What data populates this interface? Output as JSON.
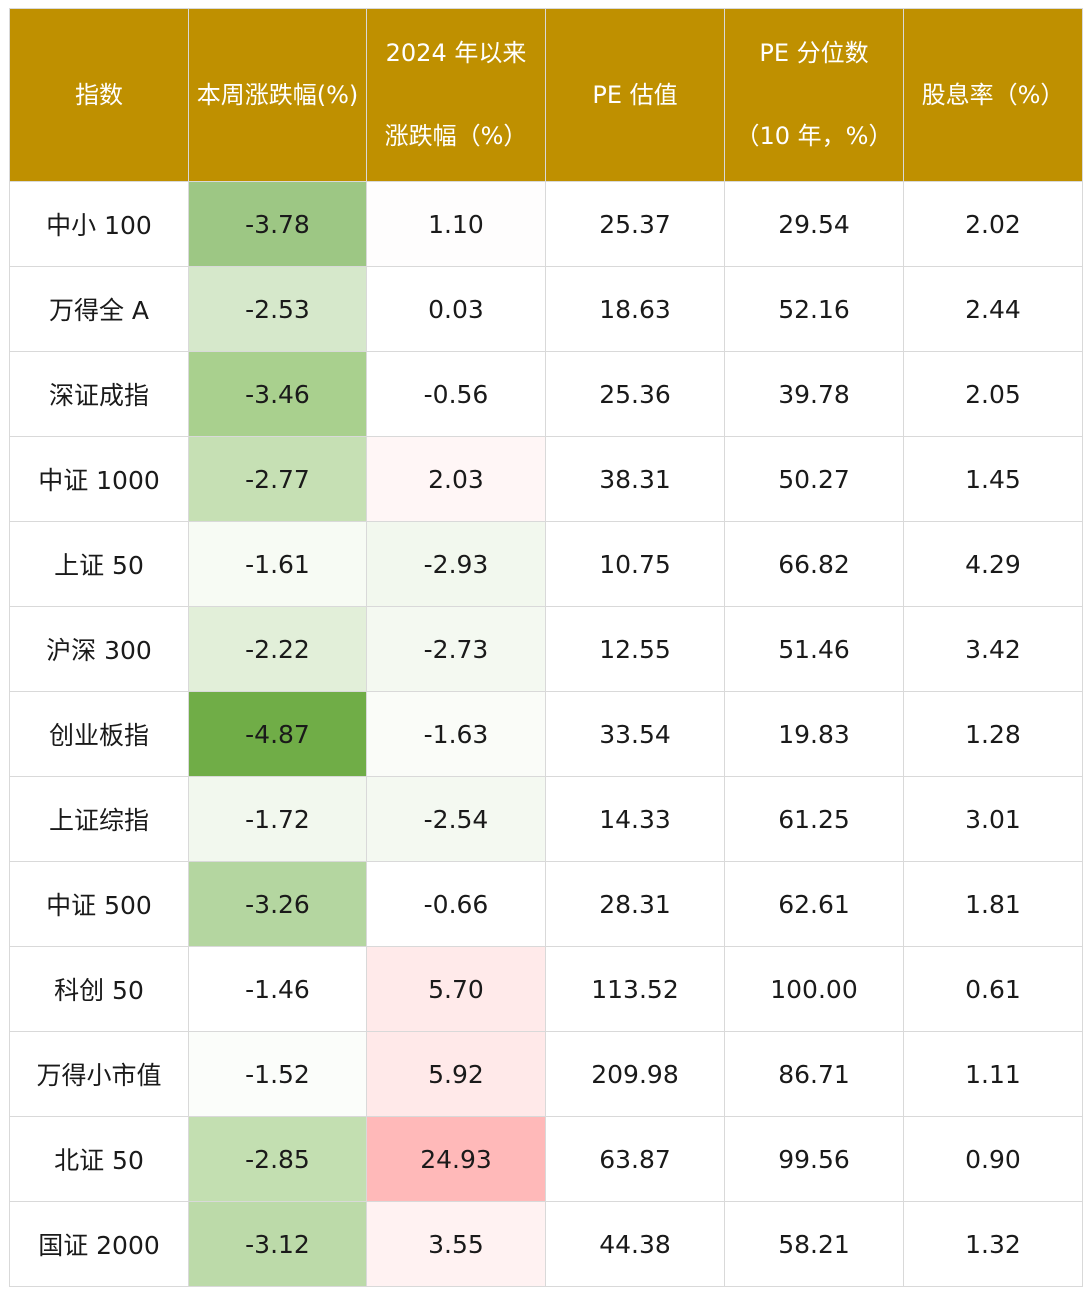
{
  "header": {
    "col0": "指数",
    "col1": "本周涨跌幅(%)",
    "col2_line1": "2024 年以来",
    "col2_line2": "涨跌幅（%）",
    "col3": "PE 估值",
    "col4_line1": "PE 分位数",
    "col4_line2": "（10 年，%）",
    "col5": "股息率（%）"
  },
  "rows": [
    {
      "name": "中小 100",
      "week": "-3.78",
      "ytd": "1.10",
      "pe": "25.37",
      "pct": "29.54",
      "div": "2.02",
      "week_bg": "#9dc784",
      "ytd_bg": "#fefdfd"
    },
    {
      "name": "万得全 A",
      "week": "-2.53",
      "ytd": "0.03",
      "pe": "18.63",
      "pct": "52.16",
      "div": "2.44",
      "week_bg": "#d6e8cb",
      "ytd_bg": "#ffffff"
    },
    {
      "name": "深证成指",
      "week": "-3.46",
      "ytd": "-0.56",
      "pe": "25.36",
      "pct": "39.78",
      "div": "2.05",
      "week_bg": "#a9d08e",
      "ytd_bg": "#ffffff"
    },
    {
      "name": "中证 1000",
      "week": "-2.77",
      "ytd": "2.03",
      "pe": "38.31",
      "pct": "50.27",
      "div": "1.45",
      "week_bg": "#c6e0b4",
      "ytd_bg": "#fff6f6"
    },
    {
      "name": "上证 50",
      "week": "-1.61",
      "ytd": "-2.93",
      "pe": "10.75",
      "pct": "66.82",
      "div": "4.29",
      "week_bg": "#f7fbf4",
      "ytd_bg": "#f2f8ee"
    },
    {
      "name": "沪深 300",
      "week": "-2.22",
      "ytd": "-2.73",
      "pe": "12.55",
      "pct": "51.46",
      "div": "3.42",
      "week_bg": "#e2efd9",
      "ytd_bg": "#f4f9f1"
    },
    {
      "name": "创业板指",
      "week": "-4.87",
      "ytd": "-1.63",
      "pe": "33.54",
      "pct": "19.83",
      "div": "1.28",
      "week_bg": "#70ad47",
      "ytd_bg": "#fafcf8"
    },
    {
      "name": "上证综指",
      "week": "-1.72",
      "ytd": "-2.54",
      "pe": "14.33",
      "pct": "61.25",
      "div": "3.01",
      "week_bg": "#f2f8ee",
      "ytd_bg": "#f4f9f1"
    },
    {
      "name": "中证 500",
      "week": "-3.26",
      "ytd": "-0.66",
      "pe": "28.31",
      "pct": "62.61",
      "div": "1.81",
      "week_bg": "#b4d6a0",
      "ytd_bg": "#ffffff"
    },
    {
      "name": "科创 50",
      "week": "-1.46",
      "ytd": "5.70",
      "pe": "113.52",
      "pct": "100.00",
      "div": "0.61",
      "week_bg": "#ffffff",
      "ytd_bg": "#ffeaea"
    },
    {
      "name": "万得小市值",
      "week": "-1.52",
      "ytd": "5.92",
      "pe": "209.98",
      "pct": "86.71",
      "div": "1.11",
      "week_bg": "#fbfdfa",
      "ytd_bg": "#ffe9e9"
    },
    {
      "name": "北证 50",
      "week": "-2.85",
      "ytd": "24.93",
      "pe": "63.87",
      "pct": "99.56",
      "div": "0.90",
      "week_bg": "#c3dfb1",
      "ytd_bg": "#ffb9b9"
    },
    {
      "name": "国证 2000",
      "week": "-3.12",
      "ytd": "3.55",
      "pe": "44.38",
      "pct": "58.21",
      "div": "1.32",
      "week_bg": "#bcdaa9",
      "ytd_bg": "#fff2f2"
    }
  ]
}
